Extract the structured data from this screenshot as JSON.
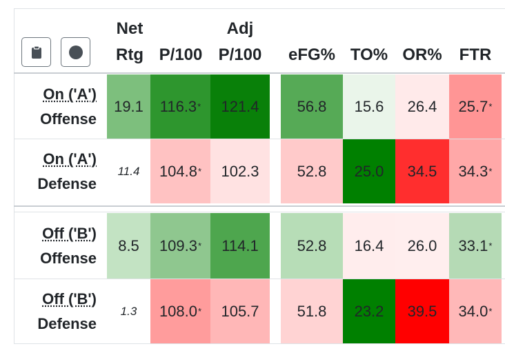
{
  "toolbar": {
    "clipboard_icon": "clipboard-icon",
    "circle_icon": "circle-icon"
  },
  "headers": {
    "net_line1": "Net",
    "net_line2": "Rtg",
    "p100": "P/100",
    "adj_line1": "Adj",
    "adj_line2": "P/100",
    "efg": "eFG%",
    "to": "TO%",
    "or": "OR%",
    "ftr": "FTR"
  },
  "rows": [
    {
      "label1": "On ('A')",
      "label2": "Offense",
      "net": "19.1",
      "p100": "116.3",
      "p100_ast": "*",
      "adj": "121.4",
      "efg": "56.8",
      "to": "15.6",
      "or": "26.4",
      "ftr": "25.7",
      "ftr_ast": "*",
      "colors": {
        "net": "#7dbf7d",
        "p100": "#2e962e",
        "adj": "#098009",
        "efg": "#56aa56",
        "to": "#eaf5ea",
        "or": "#ffeaea",
        "ftr": "#ff9595"
      }
    },
    {
      "label1": "On ('A')",
      "label2": "Defense",
      "net": "11.4",
      "p100": "104.8",
      "p100_ast": "*",
      "adj": "102.3",
      "efg": "52.8",
      "to": "25.0",
      "or": "34.5",
      "ftr": "34.3",
      "ftr_ast": "*",
      "colors": {
        "net": "#ffffff",
        "p100": "#ffc2c2",
        "adj": "#ffe2e2",
        "efg": "#ffcaca",
        "to": "#008000",
        "or": "#ff2e2e",
        "ftr": "#ffa8a8"
      }
    },
    {
      "label1": "Off ('B')",
      "label2": "Offense",
      "net": "8.5",
      "p100": "109.3",
      "p100_ast": "*",
      "adj": "114.1",
      "efg": "52.8",
      "to": "16.4",
      "or": "26.0",
      "ftr": "33.1",
      "ftr_ast": "*",
      "colors": {
        "net": "#c3e3c3",
        "p100": "#8fc78f",
        "adj": "#4ea64e",
        "efg": "#b7ddb7",
        "to": "#ffeded",
        "or": "#ffeeee",
        "ftr": "#b5dab5"
      }
    },
    {
      "label1": "Off ('B')",
      "label2": "Defense",
      "net": "1.3",
      "p100": "108.0",
      "p100_ast": "*",
      "adj": "105.7",
      "efg": "51.8",
      "to": "23.2",
      "or": "39.5",
      "ftr": "34.0",
      "ftr_ast": "*",
      "colors": {
        "net": "#ffffff",
        "p100": "#ff9c9c",
        "adj": "#ffb7b7",
        "efg": "#ffd3d3",
        "to": "#008000",
        "or": "#ff0000",
        "ftr": "#ffb8b8"
      }
    }
  ]
}
